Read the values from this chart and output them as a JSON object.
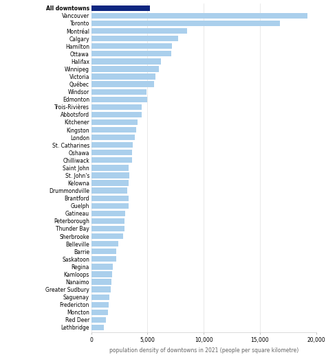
{
  "xlabel": "population density of downtowns in 2021 (people per square kilometre)",
  "categories": [
    "All downtowns",
    "Vancouver",
    "Toronto",
    "Montréal",
    "Calgary",
    "Hamilton",
    "Ottawa",
    "Halifax",
    "Winnipeg",
    "Victoria",
    "Québec",
    "Windsor",
    "Edmonton",
    "Trois-Rivières",
    "Abbotsford",
    "Kitchener",
    "Kingston",
    "London",
    "St. Catharines",
    "Oshawa",
    "Chilliwack",
    "Saint John",
    "St. John's",
    "Kelowna",
    "Drummondville",
    "Brantford",
    "Guelph",
    "Gatineau",
    "Peterborough",
    "Thunder Bay",
    "Sherbrooke",
    "Belleville",
    "Barrie",
    "Saskatoon",
    "Regina",
    "Kamloops",
    "Nanaimo",
    "Greater Sudbury",
    "Saguenay",
    "Fredericton",
    "Moncton",
    "Red Deer",
    "Lethbridge"
  ],
  "values": [
    5200,
    19200,
    16800,
    8500,
    7700,
    7200,
    7100,
    6200,
    6000,
    5700,
    5600,
    4900,
    5000,
    4500,
    4500,
    4100,
    4000,
    3900,
    3700,
    3600,
    3600,
    3300,
    3400,
    3300,
    3200,
    3300,
    3300,
    3000,
    2950,
    2950,
    2800,
    2400,
    2200,
    2200,
    1900,
    1850,
    1800,
    1750,
    1600,
    1550,
    1500,
    1300,
    1100
  ],
  "bar_colors": [
    "#0d2680",
    "#aacfec",
    "#aacfec",
    "#aacfec",
    "#aacfec",
    "#aacfec",
    "#aacfec",
    "#aacfec",
    "#aacfec",
    "#aacfec",
    "#aacfec",
    "#aacfec",
    "#aacfec",
    "#aacfec",
    "#aacfec",
    "#aacfec",
    "#aacfec",
    "#aacfec",
    "#aacfec",
    "#aacfec",
    "#aacfec",
    "#aacfec",
    "#aacfec",
    "#aacfec",
    "#aacfec",
    "#aacfec",
    "#aacfec",
    "#aacfec",
    "#aacfec",
    "#aacfec",
    "#aacfec",
    "#aacfec",
    "#aacfec",
    "#aacfec",
    "#aacfec",
    "#aacfec",
    "#aacfec",
    "#aacfec",
    "#aacfec",
    "#aacfec",
    "#aacfec",
    "#aacfec",
    "#aacfec"
  ],
  "xlim": [
    0,
    20000
  ],
  "xticks": [
    0,
    5000,
    10000,
    15000,
    20000
  ],
  "xtick_labels": [
    "0",
    "5,000",
    "10,000",
    "15,000",
    "20,000"
  ],
  "label_fontsize": 5.5,
  "tick_fontsize": 5.5,
  "xlabel_fontsize": 5.5,
  "background_color": "#ffffff",
  "bar_height": 0.75,
  "fig_width": 4.74,
  "fig_height": 5.2,
  "fig_dpi": 100
}
